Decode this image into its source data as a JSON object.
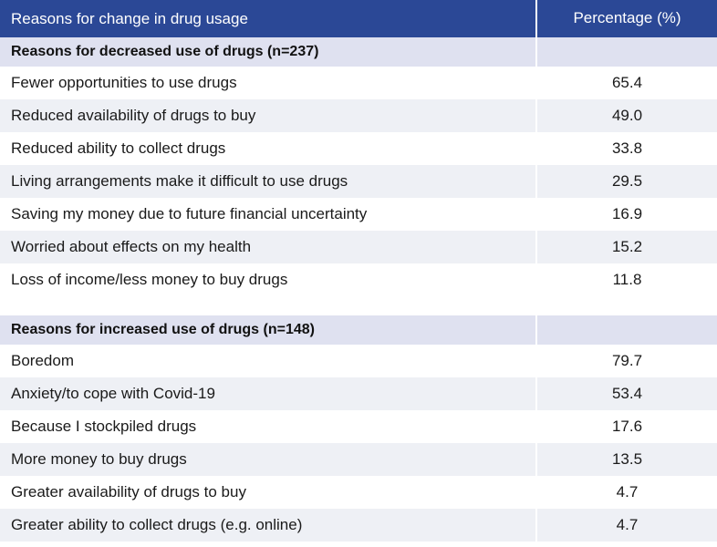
{
  "header": {
    "col1": "Reasons for change in drug usage",
    "col2": "Percentage (%)"
  },
  "decreased": {
    "title": "Reasons for decreased use of drugs (n=237)",
    "rows": [
      {
        "reason": "Fewer opportunities to use drugs",
        "value": "65.4"
      },
      {
        "reason": "Reduced availability of drugs to buy",
        "value": "49.0"
      },
      {
        "reason": "Reduced ability to collect drugs",
        "value": "33.8"
      },
      {
        "reason": "Living arrangements make it difficult to use drugs",
        "value": "29.5"
      },
      {
        "reason": "Saving my money due to future financial uncertainty",
        "value": "16.9"
      },
      {
        "reason": "Worried about effects on my health",
        "value": "15.2"
      },
      {
        "reason": "Loss of income/less money to buy drugs",
        "value": "11.8"
      }
    ]
  },
  "increased": {
    "title": "Reasons for increased use of drugs (n=148)",
    "rows": [
      {
        "reason": "Boredom",
        "value": "79.7"
      },
      {
        "reason": "Anxiety/to cope with Covid-19",
        "value": "53.4"
      },
      {
        "reason": "Because I stockpiled drugs",
        "value": "17.6"
      },
      {
        "reason": "More money to buy drugs",
        "value": "13.5"
      },
      {
        "reason": "Greater availability of drugs to buy",
        "value": "4.7"
      },
      {
        "reason": "Greater ability to collect drugs (e.g. online)",
        "value": "4.7"
      }
    ]
  }
}
